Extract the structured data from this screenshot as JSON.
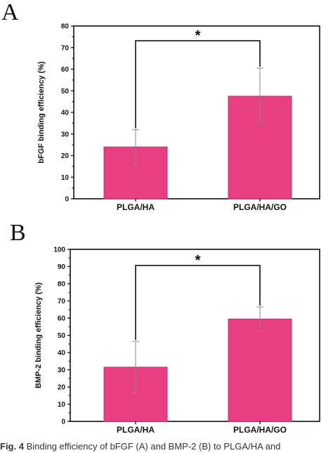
{
  "caption": {
    "label": "Fig. 4",
    "text": "Binding efficiency of bFGF (A) and BMP-2 (B) to PLGA/HA and"
  },
  "colors": {
    "bar": "#e83e82",
    "bar_stroke": "#c32f6b",
    "axis": "#000000",
    "error": "#888888"
  },
  "chart_data": [
    {
      "panel": "A",
      "type": "bar",
      "categories": [
        "PLGA/HA",
        "PLGA/HA/GO"
      ],
      "values": [
        24,
        47.5
      ],
      "error": [
        8,
        13
      ],
      "ylabel": "bFGF binding  efficiency (%)",
      "xlabel": "",
      "ylim": [
        0,
        80
      ],
      "yticks": [
        0,
        10,
        20,
        30,
        40,
        50,
        60,
        70,
        80
      ],
      "significance": {
        "from": 0,
        "to": 1,
        "label": "*"
      },
      "grid": false
    },
    {
      "panel": "B",
      "type": "bar",
      "categories": [
        "PLGA/HA",
        "PLGA/HA/GO"
      ],
      "values": [
        31.5,
        59.5
      ],
      "error": [
        15,
        7
      ],
      "ylabel": "BMP-2 binding  efficiency (%)",
      "xlabel": "",
      "ylim": [
        0,
        100
      ],
      "yticks": [
        0,
        10,
        20,
        30,
        40,
        50,
        60,
        70,
        80,
        90,
        100
      ],
      "significance": {
        "from": 0,
        "to": 1,
        "label": "*"
      },
      "grid": false
    }
  ]
}
